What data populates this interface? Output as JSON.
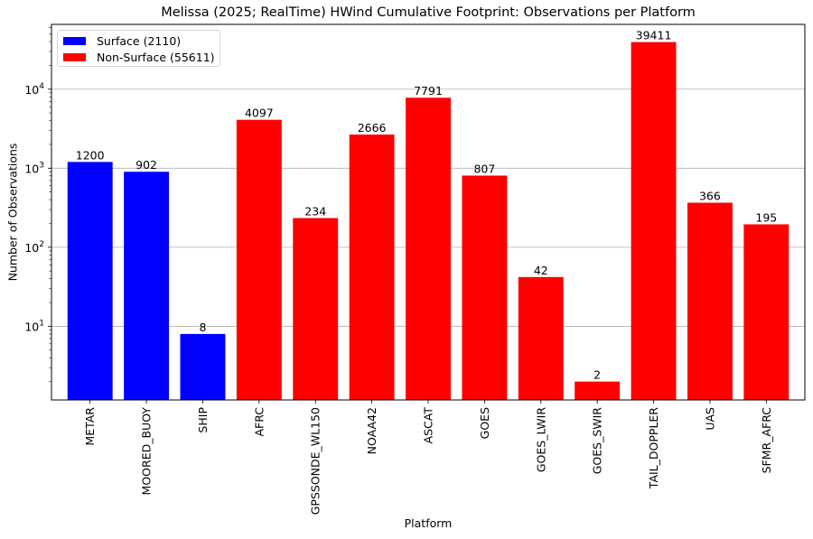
{
  "figure": {
    "title": "Melissa (2025; RealTime) HWind Cumulative Footprint: Observations per Platform",
    "xlabel": "Platform",
    "ylabel": "Number of Observations",
    "colors": {
      "surface": "#0000ff",
      "non_surface": "#ff0000",
      "grid": "#b0b0b0",
      "axes": "#000000"
    }
  },
  "legend": {
    "items": [
      {
        "label": "Surface (2110)",
        "color": "#0000ff"
      },
      {
        "label": "Non-Surface (55611)",
        "color": "#ff0000"
      }
    ]
  },
  "chart_data": {
    "type": "bar",
    "title": "Melissa (2025; RealTime) HWind Cumulative Footprint: Observations per Platform",
    "xlabel": "Platform",
    "ylabel": "Number of Observations",
    "yscale": "log",
    "ylim": [
      1.17,
      66000
    ],
    "yticks": [
      10,
      100,
      1000,
      10000
    ],
    "ytick_labels": [
      "10^1",
      "10^2",
      "10^3",
      "10^4"
    ],
    "grid": {
      "axis": "y",
      "on": true
    },
    "legend_position": "upper left",
    "categories": [
      "METAR",
      "MOORED_BUOY",
      "SHIP",
      "AFRC",
      "GPSSONDE_WL150",
      "NOAA42",
      "ASCAT",
      "GOES",
      "GOES_LWIR",
      "GOES_SWIR",
      "TAIL_DOPPLER",
      "UAS",
      "SFMR_AFRC"
    ],
    "values": [
      1200,
      902,
      8,
      4097,
      234,
      2666,
      7791,
      807,
      42,
      2,
      39411,
      366,
      195
    ],
    "groups": [
      "Surface",
      "Surface",
      "Surface",
      "Non-Surface",
      "Non-Surface",
      "Non-Surface",
      "Non-Surface",
      "Non-Surface",
      "Non-Surface",
      "Non-Surface",
      "Non-Surface",
      "Non-Surface",
      "Non-Surface"
    ],
    "series": [
      {
        "name": "Surface (2110)",
        "color": "#0000ff",
        "values": [
          1200,
          902,
          8,
          null,
          null,
          null,
          null,
          null,
          null,
          null,
          null,
          null,
          null
        ]
      },
      {
        "name": "Non-Surface (55611)",
        "color": "#ff0000",
        "values": [
          null,
          null,
          null,
          4097,
          234,
          2666,
          7791,
          807,
          42,
          2,
          39411,
          366,
          195
        ]
      }
    ],
    "data_labels": [
      "1200",
      "902",
      "8",
      "4097",
      "234",
      "2666",
      "7791",
      "807",
      "42",
      "2",
      "39411",
      "366",
      "195"
    ],
    "totals": {
      "Surface": 2110,
      "Non-Surface": 55611
    }
  }
}
